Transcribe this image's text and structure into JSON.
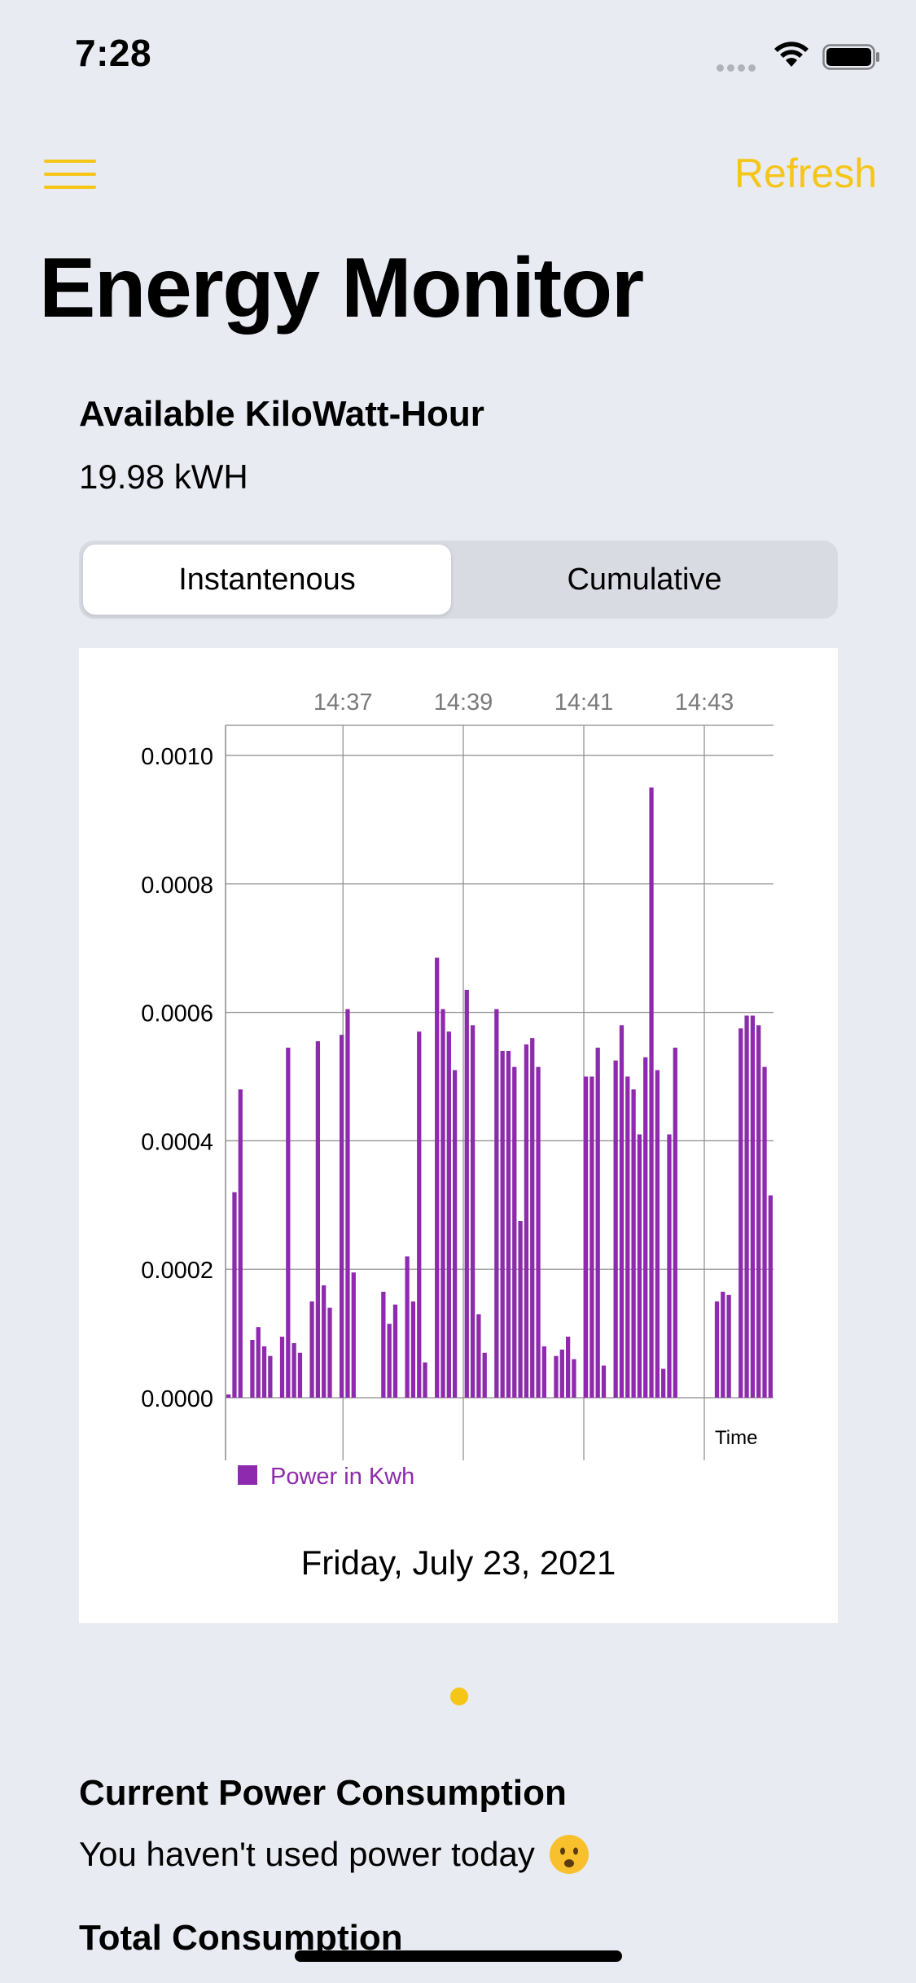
{
  "status_bar": {
    "time": "7:28"
  },
  "nav": {
    "refresh_label": "Refresh"
  },
  "title": "Energy Monitor",
  "available": {
    "label": "Available KiloWatt-Hour",
    "value": "19.98 kWH"
  },
  "segments": {
    "instantaneous": "Instantenous",
    "cumulative": "Cumulative"
  },
  "chart_data": {
    "type": "bar",
    "x_ticks": [
      "14:37",
      "14:39",
      "14:41",
      "14:43"
    ],
    "xlabel": "Time",
    "ylim": [
      0,
      0.00105
    ],
    "y_ticks": [
      "0.0000",
      "0.0002",
      "0.0004",
      "0.0006",
      "0.0008",
      "0.0010"
    ],
    "grid": true,
    "legend_position": "bottom-left",
    "series": [
      {
        "name": "Power in Kwh",
        "color": "#8e2aad",
        "values": [
          5e-06,
          0.00032,
          0.00048,
          0,
          9e-05,
          0.00011,
          8e-05,
          6.5e-05,
          0,
          9.5e-05,
          0.000545,
          8.5e-05,
          7e-05,
          0,
          0.00015,
          0.000555,
          0.000175,
          0.00014,
          0,
          0.000565,
          0.000605,
          0.000195,
          0,
          0,
          0,
          0,
          0.000165,
          0.000115,
          0.000145,
          0,
          0.00022,
          0.00015,
          0.00057,
          5.5e-05,
          0,
          0.000685,
          0.000605,
          0.00057,
          0.00051,
          0,
          0.000635,
          0.00058,
          0.00013,
          7e-05,
          0,
          0.000605,
          0.00054,
          0.00054,
          0.000515,
          0.000275,
          0.00055,
          0.00056,
          0.000515,
          8e-05,
          0,
          6.5e-05,
          7.5e-05,
          9.5e-05,
          6e-05,
          0,
          0.0005,
          0.0005,
          0.000545,
          5e-05,
          0,
          0.000525,
          0.00058,
          0.0005,
          0.00048,
          0.00041,
          0.00053,
          0.00095,
          0.00051,
          4.5e-05,
          0.00041,
          0.000545,
          0,
          0,
          0,
          0,
          0,
          0,
          0.00015,
          0.000165,
          0.00016,
          0,
          0.000575,
          0.000595,
          0.000595,
          0.00058,
          0.000515,
          0.000315
        ]
      }
    ]
  },
  "date_label": "Friday, July 23, 2021",
  "consumption": {
    "title": "Current Power Consumption",
    "text": "You haven't used power today",
    "total_title": "Total Consumption"
  },
  "icons": [
    "menu-icon",
    "wifi-icon",
    "battery-icon",
    "frowning-face-icon"
  ]
}
